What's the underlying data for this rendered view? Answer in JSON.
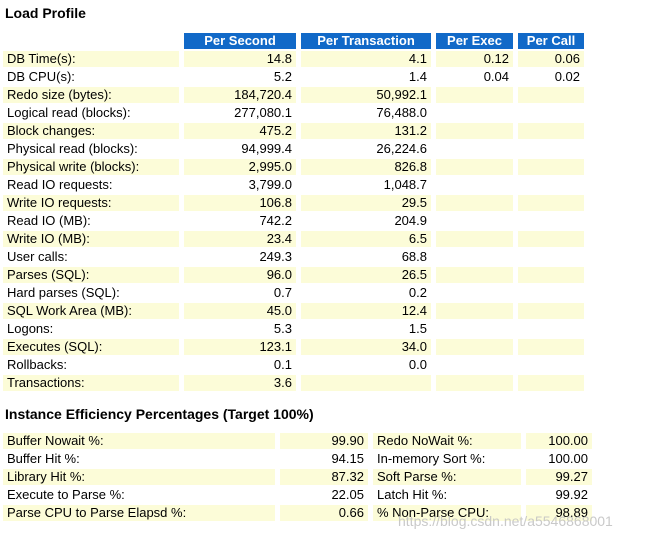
{
  "page": {
    "load_profile_title": "Load Profile",
    "efficiency_title": "Instance Efficiency Percentages (Target 100%)",
    "watermark": "https://blog.csdn.net/a5546868001"
  },
  "colors": {
    "header_bg": "#1169C8",
    "header_text": "#FFFFFF",
    "row_alt_bg": "#FCFCD8"
  },
  "load_profile": {
    "headers": [
      "Per Second",
      "Per Transaction",
      "Per Exec",
      "Per Call"
    ],
    "rows": [
      {
        "label": "DB Time(s):",
        "values": [
          "14.8",
          "4.1",
          "0.12",
          "0.06"
        ]
      },
      {
        "label": "DB CPU(s):",
        "values": [
          "5.2",
          "1.4",
          "0.04",
          "0.02"
        ]
      },
      {
        "label": "Redo size (bytes):",
        "values": [
          "184,720.4",
          "50,992.1",
          "",
          ""
        ]
      },
      {
        "label": "Logical read (blocks):",
        "values": [
          "277,080.1",
          "76,488.0",
          "",
          ""
        ]
      },
      {
        "label": "Block changes:",
        "values": [
          "475.2",
          "131.2",
          "",
          ""
        ]
      },
      {
        "label": "Physical read (blocks):",
        "values": [
          "94,999.4",
          "26,224.6",
          "",
          ""
        ]
      },
      {
        "label": "Physical write (blocks):",
        "values": [
          "2,995.0",
          "826.8",
          "",
          ""
        ]
      },
      {
        "label": "Read IO requests:",
        "values": [
          "3,799.0",
          "1,048.7",
          "",
          ""
        ]
      },
      {
        "label": "Write IO requests:",
        "values": [
          "106.8",
          "29.5",
          "",
          ""
        ]
      },
      {
        "label": "Read IO (MB):",
        "values": [
          "742.2",
          "204.9",
          "",
          ""
        ]
      },
      {
        "label": "Write IO (MB):",
        "values": [
          "23.4",
          "6.5",
          "",
          ""
        ]
      },
      {
        "label": "User calls:",
        "values": [
          "249.3",
          "68.8",
          "",
          ""
        ]
      },
      {
        "label": "Parses (SQL):",
        "values": [
          "96.0",
          "26.5",
          "",
          ""
        ]
      },
      {
        "label": "Hard parses (SQL):",
        "values": [
          "0.7",
          "0.2",
          "",
          ""
        ]
      },
      {
        "label": "SQL Work Area (MB):",
        "values": [
          "45.0",
          "12.4",
          "",
          ""
        ]
      },
      {
        "label": "Logons:",
        "values": [
          "5.3",
          "1.5",
          "",
          ""
        ]
      },
      {
        "label": "Executes (SQL):",
        "values": [
          "123.1",
          "34.0",
          "",
          ""
        ]
      },
      {
        "label": "Rollbacks:",
        "values": [
          "0.1",
          "0.0",
          "",
          ""
        ]
      },
      {
        "label": "Transactions:",
        "values": [
          "3.6",
          "",
          "",
          ""
        ]
      }
    ]
  },
  "instance_efficiency": {
    "rows": [
      {
        "label_left": "Buffer Nowait %:",
        "value_left": "99.90",
        "label_right": "Redo NoWait %:",
        "value_right": "100.00"
      },
      {
        "label_left": "Buffer Hit %:",
        "value_left": "94.15",
        "label_right": "In-memory Sort %:",
        "value_right": "100.00"
      },
      {
        "label_left": "Library Hit %:",
        "value_left": "87.32",
        "label_right": "Soft Parse %:",
        "value_right": "99.27"
      },
      {
        "label_left": "Execute to Parse %:",
        "value_left": "22.05",
        "label_right": "Latch Hit %:",
        "value_right": "99.92"
      },
      {
        "label_left": "Parse CPU to Parse Elapsd %:",
        "value_left": "0.66",
        "label_right": "% Non-Parse CPU:",
        "value_right": "98.89"
      }
    ]
  }
}
